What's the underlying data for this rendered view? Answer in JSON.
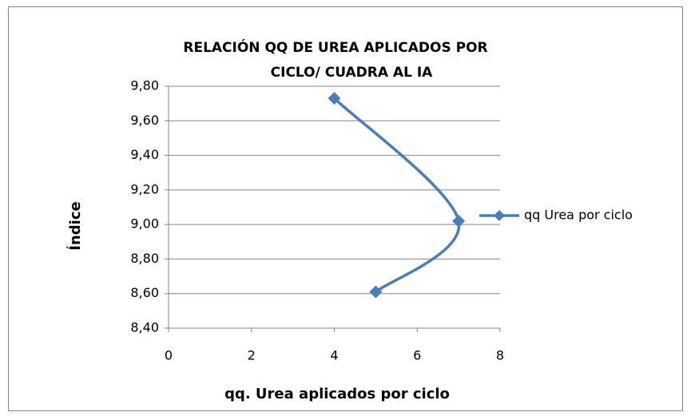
{
  "chart_data": {
    "type": "scatter-smooth",
    "title": [
      "RELACIÓN QQ DE UREA APLICADOS POR",
      "CICLO/ CUADRA  AL IA"
    ],
    "x_label": "qq. Urea aplicados por ciclo",
    "y_label": "Índice",
    "series": [
      {
        "name": "qq Urea por ciclo",
        "color": "#4a7ebb",
        "x": [
          4,
          7,
          5
        ],
        "values": [
          9.73,
          9.02,
          8.61
        ]
      }
    ],
    "xlim": [
      0,
      8
    ],
    "xticks": [
      0,
      2,
      4,
      6,
      8
    ],
    "ylim": [
      8.4,
      9.8
    ],
    "yticks": [
      {
        "value": 8.4,
        "label": "8,40"
      },
      {
        "value": 8.6,
        "label": "8,60"
      },
      {
        "value": 8.8,
        "label": "8,80"
      },
      {
        "value": 9.0,
        "label": "9,00"
      },
      {
        "value": 9.2,
        "label": "9,20"
      },
      {
        "value": 9.4,
        "label": "9,40"
      },
      {
        "value": 9.6,
        "label": "9,60"
      },
      {
        "value": 9.8,
        "label": "9,80"
      }
    ],
    "grid": true,
    "legend": "right"
  }
}
